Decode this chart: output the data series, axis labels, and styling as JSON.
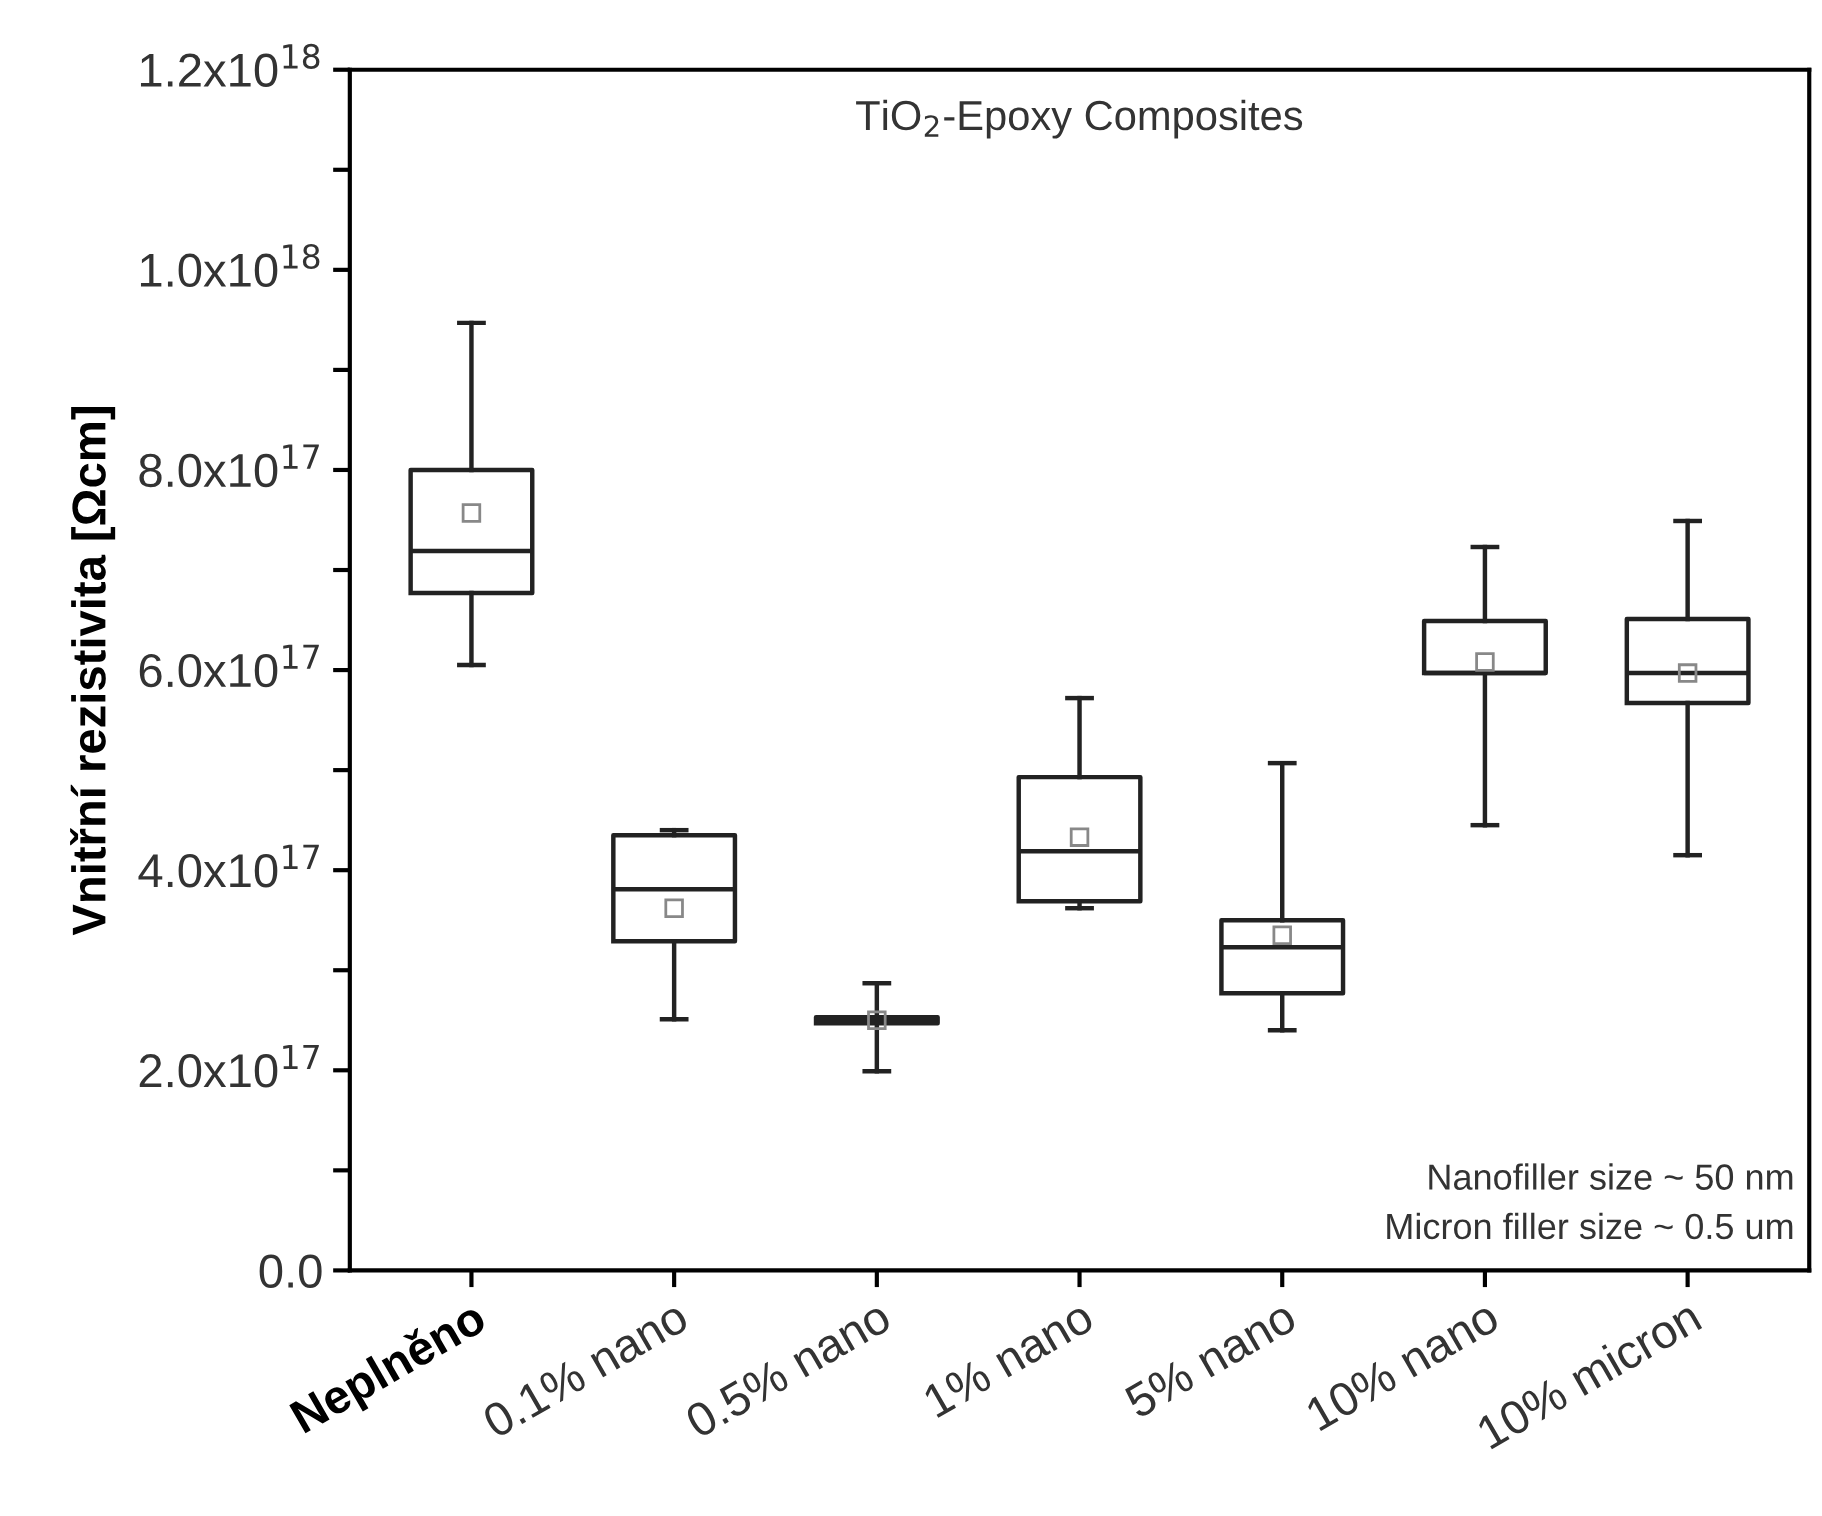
{
  "chart_data": {
    "type": "box",
    "title": "TiO$_{2}$-Epoxy Composites",
    "ylabel": "Vnitřní rezistivita [Ωcm]",
    "categories": [
      "Neplněno",
      "0.1% nano",
      "0.5% nano",
      "1% nano",
      "5% nano",
      "10% nano",
      "10% micron"
    ],
    "boxes": [
      {
        "low": 6.05e+17,
        "q1": 6.77e+17,
        "median": 7.19e+17,
        "q3": 8e+17,
        "high": 9.47e+17,
        "mean": 7.57e+17
      },
      {
        "low": 2.51e+17,
        "q1": 3.29e+17,
        "median": 3.81e+17,
        "q3": 4.35e+17,
        "high": 4.4e+17,
        "mean": 3.62e+17
      },
      {
        "low": 1.99e+17,
        "q1": 2.47e+17,
        "median": 2.5e+17,
        "q3": 2.53e+17,
        "high": 2.87e+17,
        "mean": 2.5e+17
      },
      {
        "low": 3.62e+17,
        "q1": 3.69e+17,
        "median": 4.19e+17,
        "q3": 4.93e+17,
        "high": 5.72e+17,
        "mean": 4.33e+17
      },
      {
        "low": 2.4e+17,
        "q1": 2.77e+17,
        "median": 3.23e+17,
        "q3": 3.5e+17,
        "high": 5.07e+17,
        "mean": 3.35e+17
      },
      {
        "low": 4.45e+17,
        "q1": 5.97e+17,
        "median": 5.97e+17,
        "q3": 6.49e+17,
        "high": 7.23e+17,
        "mean": 6.08e+17
      },
      {
        "low": 4.15e+17,
        "q1": 5.67e+17,
        "median": 5.97e+17,
        "q3": 6.51e+17,
        "high": 7.49e+17,
        "mean": 5.97e+17
      }
    ],
    "color": "#222222",
    "ylim": [
      0,
      1.2e+18
    ],
    "yticks": [
      {
        "value": 0,
        "label": "0.0"
      },
      {
        "value": 1e+17,
        "label": null
      },
      {
        "value": 2e+17,
        "label": "2.0x10$^{17}$"
      },
      {
        "value": 3e+17,
        "label": null
      },
      {
        "value": 4e+17,
        "label": "4.0x10$^{17}$"
      },
      {
        "value": 5e+17,
        "label": null
      },
      {
        "value": 6e+17,
        "label": "6.0x10$^{17}$"
      },
      {
        "value": 7e+17,
        "label": null
      },
      {
        "value": 8e+17,
        "label": "8.0x10$^{17}$"
      },
      {
        "value": 9e+17,
        "label": null
      },
      {
        "value": 1e+18,
        "label": "1.0x10$^{18}$"
      },
      {
        "value": 1.1e+18,
        "label": null
      },
      {
        "value": 1.2e+18,
        "label": "1.2x10$^{18}$"
      }
    ],
    "grid": false,
    "legend": false,
    "annotations": [
      "Nanofiller size ~ 50 nm\nMicron filler size ~ 0.5 um"
    ]
  }
}
